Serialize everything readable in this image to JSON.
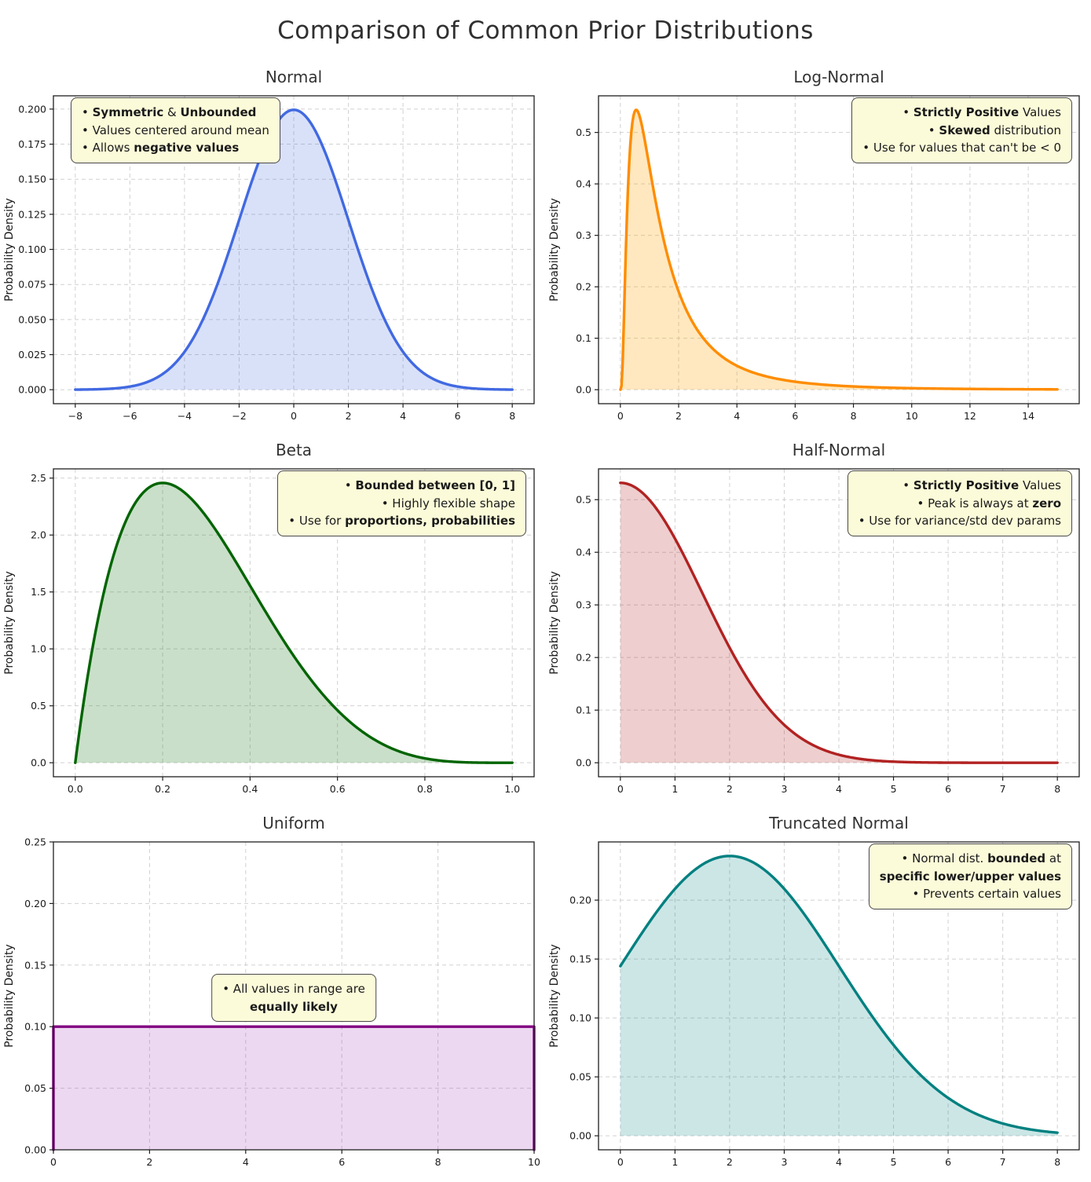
{
  "title": "Comparison of Common Prior Distributions",
  "ylabel_shared": "Probability Density",
  "chart_data": [
    {
      "type": "area",
      "title": "Normal",
      "ylabel": "Probability Density",
      "color": "#4169E1",
      "fill": "rgba(65,105,225,0.20)",
      "dist": {
        "name": "normal",
        "mean": 0,
        "sd": 2
      },
      "curve_range": [
        -8,
        8
      ],
      "xlim": [
        -8.8,
        8.8
      ],
      "ylim": [
        -0.00997,
        0.20945
      ],
      "xticks": [
        -8,
        -6,
        -4,
        -2,
        0,
        2,
        4,
        6,
        8
      ],
      "xtick_labels": [
        "−8",
        "−6",
        "−4",
        "−2",
        "0",
        "2",
        "4",
        "6",
        "8"
      ],
      "yticks": [
        0,
        0.025,
        0.05,
        0.075,
        0.1,
        0.125,
        0.15,
        0.175,
        0.2
      ],
      "ytick_labels": [
        "0.000",
        "0.025",
        "0.050",
        "0.075",
        "0.100",
        "0.125",
        "0.150",
        "0.175",
        "0.200"
      ],
      "peak": {
        "x": 0,
        "y": 0.199
      },
      "grid": true,
      "annotation": {
        "placement": "top-left",
        "align": "left",
        "lines": [
          [
            {
              "t": "• ",
              "b": false
            },
            {
              "t": "Symmetric",
              "b": true
            },
            {
              "t": " & ",
              "b": false
            },
            {
              "t": "Unbounded",
              "b": true
            }
          ],
          [
            {
              "t": "• Values centered around mean",
              "b": false
            }
          ],
          [
            {
              "t": "• Allows ",
              "b": false
            },
            {
              "t": "negative values",
              "b": true
            }
          ]
        ]
      }
    },
    {
      "type": "area",
      "title": "Log-Normal",
      "ylabel": "Probability Density",
      "color": "#FF8C00",
      "fill": "rgba(255,165,0,0.25)",
      "dist": {
        "name": "lognormal",
        "mu": 0.2,
        "sigma": 0.9
      },
      "curve_range": [
        0.001,
        15
      ],
      "xlim": [
        -0.75,
        15.75
      ],
      "ylim": [
        -0.0272,
        0.5712
      ],
      "xticks": [
        0,
        2,
        4,
        6,
        8,
        10,
        12,
        14
      ],
      "xtick_labels": [
        "0",
        "2",
        "4",
        "6",
        "8",
        "10",
        "12",
        "14"
      ],
      "yticks": [
        0,
        0.1,
        0.2,
        0.3,
        0.4,
        0.5
      ],
      "ytick_labels": [
        "0.0",
        "0.1",
        "0.2",
        "0.3",
        "0.4",
        "0.5"
      ],
      "peak": {
        "x": 0.54,
        "y": 0.544
      },
      "grid": true,
      "annotation": {
        "placement": "top-right",
        "align": "right",
        "lines": [
          [
            {
              "t": "• ",
              "b": false
            },
            {
              "t": "Strictly Positive",
              "b": true
            },
            {
              "t": " Values",
              "b": false
            }
          ],
          [
            {
              "t": "• ",
              "b": false
            },
            {
              "t": "Skewed",
              "b": true
            },
            {
              "t": " distribution",
              "b": false
            }
          ],
          [
            {
              "t": "• Use for values that can't be < 0",
              "b": false
            }
          ]
        ]
      }
    },
    {
      "type": "area",
      "title": "Beta",
      "ylabel": "Probability Density",
      "color": "#006400",
      "fill": "rgba(60,140,60,0.28)",
      "dist": {
        "name": "beta",
        "a": 2,
        "b": 5,
        "coef": 30
      },
      "curve_range": [
        0,
        1
      ],
      "xlim": [
        -0.05,
        1.05
      ],
      "ylim": [
        -0.123,
        2.581
      ],
      "xticks": [
        0,
        0.2,
        0.4,
        0.6,
        0.8,
        1.0
      ],
      "xtick_labels": [
        "0.0",
        "0.2",
        "0.4",
        "0.6",
        "0.8",
        "1.0"
      ],
      "yticks": [
        0,
        0.5,
        1.0,
        1.5,
        2.0,
        2.5
      ],
      "ytick_labels": [
        "0.0",
        "0.5",
        "1.0",
        "1.5",
        "2.0",
        "2.5"
      ],
      "peak": {
        "x": 0.2,
        "y": 2.46
      },
      "grid": true,
      "annotation": {
        "placement": "top-right",
        "align": "right",
        "lines": [
          [
            {
              "t": "• ",
              "b": false
            },
            {
              "t": "Bounded between [0, 1]",
              "b": true
            }
          ],
          [
            {
              "t": "• Highly flexible shape",
              "b": false
            }
          ],
          [
            {
              "t": "• Use for ",
              "b": false
            },
            {
              "t": "proportions, probabilities",
              "b": true
            }
          ]
        ]
      }
    },
    {
      "type": "area",
      "title": "Half-Normal",
      "ylabel": "Probability Density",
      "color": "#B22222",
      "fill": "rgba(178,34,34,0.22)",
      "dist": {
        "name": "halfnormal",
        "sigma": 1.5
      },
      "curve_range": [
        0,
        8
      ],
      "xlim": [
        -0.4,
        8.4
      ],
      "ylim": [
        -0.0266,
        0.5585
      ],
      "xticks": [
        0,
        1,
        2,
        3,
        4,
        5,
        6,
        7,
        8
      ],
      "xtick_labels": [
        "0",
        "1",
        "2",
        "3",
        "4",
        "5",
        "6",
        "7",
        "8"
      ],
      "yticks": [
        0,
        0.1,
        0.2,
        0.3,
        0.4,
        0.5
      ],
      "ytick_labels": [
        "0.0",
        "0.1",
        "0.2",
        "0.3",
        "0.4",
        "0.5"
      ],
      "peak": {
        "x": 0,
        "y": 0.532
      },
      "grid": true,
      "annotation": {
        "placement": "top-right",
        "align": "right",
        "lines": [
          [
            {
              "t": "• ",
              "b": false
            },
            {
              "t": "Strictly Positive",
              "b": true
            },
            {
              "t": " Values",
              "b": false
            }
          ],
          [
            {
              "t": "• Peak is always at ",
              "b": false
            },
            {
              "t": "zero",
              "b": true
            }
          ],
          [
            {
              "t": "• Use for variance/std dev params",
              "b": false
            }
          ]
        ]
      }
    },
    {
      "type": "area",
      "title": "Uniform",
      "ylabel": "Probability Density",
      "color": "#800080",
      "fill": "rgba(160,60,180,0.20)",
      "dist": {
        "name": "uniform",
        "a": 0,
        "b": 10,
        "height": 0.1
      },
      "curve_range": [
        0,
        10
      ],
      "xlim": [
        0,
        10
      ],
      "ylim": [
        0,
        0.25
      ],
      "xticks": [
        0,
        2,
        4,
        6,
        8,
        10
      ],
      "xtick_labels": [
        "0",
        "2",
        "4",
        "6",
        "8",
        "10"
      ],
      "yticks": [
        0,
        0.05,
        0.1,
        0.15,
        0.2,
        0.25
      ],
      "ytick_labels": [
        "0.00",
        "0.05",
        "0.10",
        "0.15",
        "0.20",
        "0.25"
      ],
      "peak": {
        "x": "0–10",
        "y": 0.1
      },
      "grid": true,
      "annotation": {
        "placement": "center",
        "align": "center",
        "lines": [
          [
            {
              "t": "• All values in range are",
              "b": false
            }
          ],
          [
            {
              "t": "equally likely",
              "b": true
            }
          ]
        ]
      }
    },
    {
      "type": "area",
      "title": "Truncated Normal",
      "ylabel": "Probability Density",
      "color": "#008080",
      "fill": "rgba(0,128,128,0.20)",
      "dist": {
        "name": "truncnormal",
        "mean": 2,
        "sd": 2,
        "lo": 0,
        "hi": 8,
        "z": 0.84
      },
      "curve_range": [
        0,
        8
      ],
      "xlim": [
        -0.4,
        8.4
      ],
      "ylim": [
        -0.0119,
        0.2494
      ],
      "xticks": [
        0,
        1,
        2,
        3,
        4,
        5,
        6,
        7,
        8
      ],
      "xtick_labels": [
        "0",
        "1",
        "2",
        "3",
        "4",
        "5",
        "6",
        "7",
        "8"
      ],
      "yticks": [
        0,
        0.05,
        0.1,
        0.15,
        0.2
      ],
      "ytick_labels": [
        "0.00",
        "0.05",
        "0.10",
        "0.15",
        "0.20"
      ],
      "peak": {
        "x": 2,
        "y": 0.2375
      },
      "grid": true,
      "annotation": {
        "placement": "top-right",
        "align": "right",
        "lines": [
          [
            {
              "t": "• Normal dist. ",
              "b": false
            },
            {
              "t": "bounded",
              "b": true
            },
            {
              "t": " at",
              "b": false
            }
          ],
          [
            {
              "t": "specific lower/upper values",
              "b": true
            }
          ],
          [
            {
              "t": "• Prevents certain values",
              "b": false
            }
          ]
        ]
      }
    }
  ]
}
